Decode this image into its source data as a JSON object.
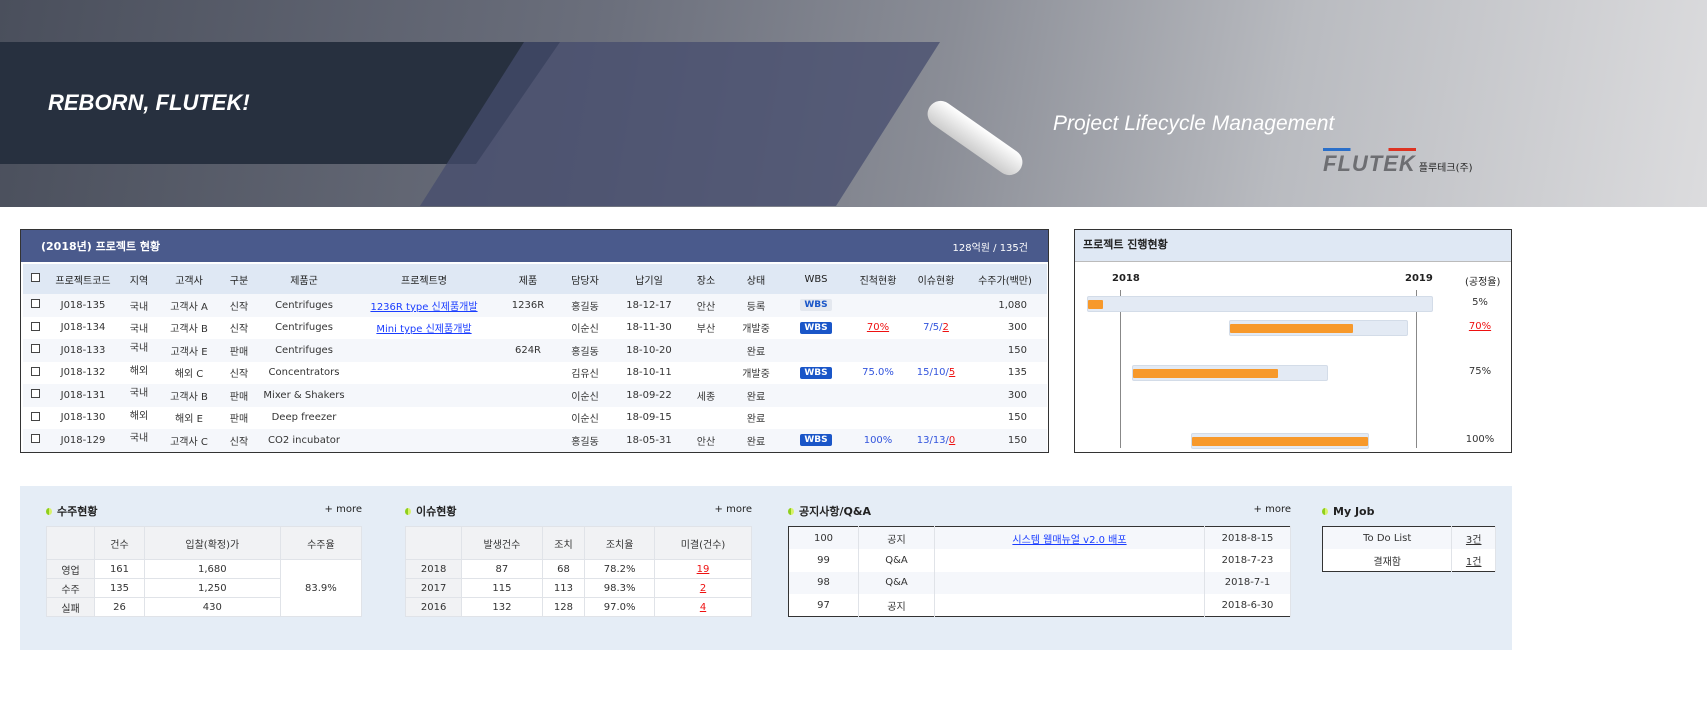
{
  "banner": {
    "slogan": "REBORN, FLUTEK!",
    "subtitle": "Project Lifecycle Management",
    "logo_text": "FLUTEK",
    "company": "플루테크(주)"
  },
  "projects": {
    "title": "(2018년) 프로젝트 현황",
    "summary": "128억원 / 135건",
    "columns": [
      "프로젝트코드",
      "지역",
      "고객사",
      "구분",
      "제품군",
      "프로젝트명",
      "제품",
      "담당자",
      "납기일",
      "장소",
      "상태",
      "WBS",
      "진척현황",
      "이슈현황",
      "수주가(백만)"
    ],
    "rows": [
      {
        "code": "J018-135",
        "region": "국내",
        "customer": "고객사 A",
        "type": "신작",
        "group": "Centrifuges",
        "name": "1236R type 신제품개발",
        "product": "1236R",
        "owner": "홍길동",
        "due": "18-12-17",
        "place": "안산",
        "status": "등록",
        "wbs": "WBS",
        "wbs_active": false,
        "progress": "",
        "issue": [
          "",
          "",
          ""
        ],
        "amount": "1,080"
      },
      {
        "code": "J018-134",
        "region": "국내",
        "customer": "고객사 B",
        "type": "신작",
        "group": "Centrifuges",
        "name": "Mini type 신제품개발",
        "product": "",
        "owner": "이순신",
        "due": "18-11-30",
        "place": "부산",
        "status": "개발중",
        "wbs": "WBS",
        "wbs_active": true,
        "progress": "70%",
        "progress_alert": true,
        "issue": [
          "7/5/",
          "2"
        ],
        "amount": "300"
      },
      {
        "code": "J018-133",
        "region": "국내",
        "customer": "고객사 E",
        "type": "판매",
        "group": "Centrifuges",
        "name": "",
        "product": "624R",
        "owner": "홍길동",
        "due": "18-10-20",
        "place": "",
        "status": "완료",
        "wbs": "",
        "progress": "",
        "issue": [
          "",
          ""
        ],
        "amount": "150"
      },
      {
        "code": "J018-132",
        "region": "해외",
        "customer": "해외 C",
        "type": "신작",
        "group": "Concentrators",
        "name": "",
        "product": "",
        "owner": "김유신",
        "due": "18-10-11",
        "place": "",
        "status": "개발중",
        "wbs": "WBS",
        "wbs_active": true,
        "progress": "75.0%",
        "issue": [
          "15/10/",
          "5"
        ],
        "amount": "135"
      },
      {
        "code": "J018-131",
        "region": "국내",
        "customer": "고객사 B",
        "type": "판매",
        "group": "Mixer & Shakers",
        "name": "",
        "product": "",
        "owner": "이순신",
        "due": "18-09-22",
        "place": "세종",
        "status": "완료",
        "wbs": "",
        "progress": "",
        "issue": [
          "",
          ""
        ],
        "amount": "300"
      },
      {
        "code": "J018-130",
        "region": "해외",
        "customer": "해외 E",
        "type": "판매",
        "group": "Deep freezer",
        "name": "",
        "product": "",
        "owner": "이순신",
        "due": "18-09-15",
        "place": "",
        "status": "완료",
        "wbs": "",
        "progress": "",
        "issue": [
          "",
          ""
        ],
        "amount": "150"
      },
      {
        "code": "J018-129",
        "region": "국내",
        "customer": "고객사 C",
        "type": "신작",
        "group": "CO2 incubator",
        "name": "",
        "product": "",
        "owner": "홍길동",
        "due": "18-05-31",
        "place": "안산",
        "status": "완료",
        "wbs": "WBS",
        "wbs_active": true,
        "progress": "100%",
        "issue": [
          "13/13/",
          "0"
        ],
        "amount": "150"
      }
    ]
  },
  "gantt": {
    "title": "프로젝트 진행현황",
    "year1": "2018",
    "year2": "2019",
    "rate_label": "(공정율)",
    "rows": [
      {
        "progress": 5,
        "label": "5%",
        "alert": false
      },
      {
        "progress": 70,
        "label": "70%",
        "alert": true
      },
      {
        "progress": 75,
        "label": "75%",
        "alert": false
      },
      {
        "progress": 100,
        "label": "100%",
        "alert": false
      }
    ],
    "accent": "#f7992b"
  },
  "orders": {
    "title": "수주현황",
    "more": "+ more",
    "columns": [
      "",
      "건수",
      "입찰(확정)가",
      "수주율"
    ],
    "rows": [
      [
        "영업",
        "161",
        "1,680"
      ],
      [
        "수주",
        "135",
        "1,250"
      ],
      [
        "실패",
        "26",
        "430"
      ]
    ],
    "rate": "83.9%"
  },
  "issues": {
    "title": "이슈현황",
    "more": "+ more",
    "columns": [
      "",
      "발생건수",
      "조치",
      "조치율",
      "미결(건수)"
    ],
    "rows": [
      [
        "2018",
        "87",
        "68",
        "78.2%",
        "19"
      ],
      [
        "2017",
        "115",
        "113",
        "98.3%",
        "2"
      ],
      [
        "2016",
        "132",
        "128",
        "97.0%",
        "4"
      ]
    ]
  },
  "notices": {
    "title": "공지사항/Q&A",
    "more": "+ more",
    "rows": [
      [
        "100",
        "공지",
        "시스템 웹매뉴얼 v2.0 배포",
        "2018-8-15"
      ],
      [
        "99",
        "Q&A",
        "",
        "2018-7-23"
      ],
      [
        "98",
        "Q&A",
        "",
        "2018-7-1"
      ],
      [
        "97",
        "공지",
        "",
        "2018-6-30"
      ]
    ]
  },
  "myjob": {
    "title": "My Job",
    "rows": [
      [
        "To Do List",
        "3건"
      ],
      [
        "결재함",
        "1건"
      ]
    ]
  }
}
